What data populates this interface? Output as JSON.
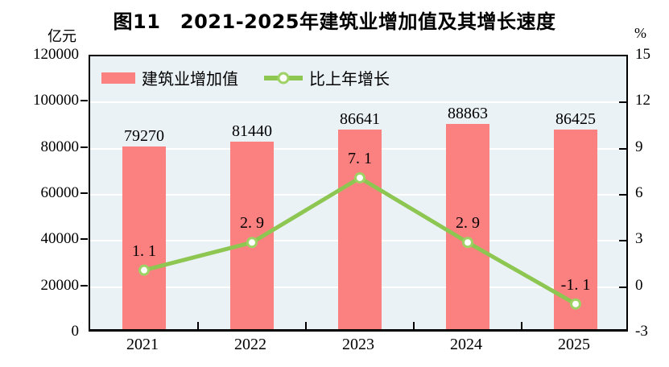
{
  "title": "图11　2021-2025年建筑业增加值及其增长速度",
  "left_unit": "亿元",
  "right_unit": "%",
  "legend": [
    {
      "label": "建筑业增加值",
      "type": "bar",
      "color": "#fb8080"
    },
    {
      "label": "比上年增长",
      "type": "line",
      "color": "#8dc752"
    }
  ],
  "colors": {
    "bar": "#fb8080",
    "line": "#8dc752",
    "marker_fill": "#ffffff",
    "marker_stroke": "#9ed265",
    "plot_background": "#eaf2f6",
    "gridline": "#ffffff",
    "axis": "#000000"
  },
  "chart_data": {
    "type": "combo",
    "title": "图11　2021-2025年建筑业增加值及其增长速度",
    "categories": [
      "2021",
      "2022",
      "2023",
      "2024",
      "2025"
    ],
    "series": [
      {
        "name": "建筑业增加值",
        "type": "bar",
        "axis": "left",
        "values": [
          79270,
          81440,
          86641,
          88863,
          86425
        ],
        "labels": [
          "79270",
          "81440",
          "86641",
          "88863",
          "86425"
        ],
        "color": "#fb8080"
      },
      {
        "name": "比上年增长",
        "type": "line",
        "axis": "right",
        "values": [
          1.1,
          2.9,
          7.1,
          2.9,
          -1.1
        ],
        "labels": [
          "1. 1",
          "2. 9",
          "7. 1",
          "2. 9",
          "-1. 1"
        ],
        "color": "#8dc752"
      }
    ],
    "left_axis": {
      "unit": "亿元",
      "min": 0,
      "max": 120000,
      "step": 20000,
      "ticks": [
        "0",
        "20000",
        "40000",
        "60000",
        "80000",
        "100000",
        "120000"
      ]
    },
    "right_axis": {
      "unit": "%",
      "min": -3,
      "max": 15,
      "step": 3,
      "ticks": [
        "-3",
        "0",
        "3",
        "6",
        "9",
        "12",
        "15"
      ]
    },
    "grid": "horizontal",
    "legend_position": "top-left-inside"
  }
}
